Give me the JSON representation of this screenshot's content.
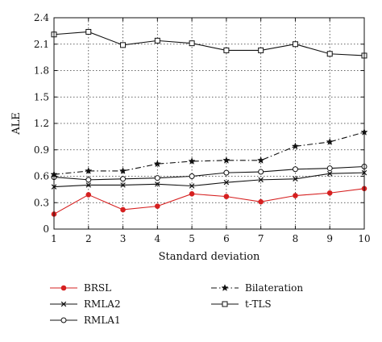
{
  "chart_data": {
    "type": "line",
    "title": "",
    "xlabel": "Standard deviation",
    "ylabel": "ALE",
    "xlim": [
      1,
      10
    ],
    "ylim": [
      0,
      2.4
    ],
    "xticks": [
      "1",
      "2",
      "3",
      "4",
      "5",
      "6",
      "7",
      "8",
      "9",
      "10"
    ],
    "yticks": [
      "0",
      "0.3",
      "0.6",
      "0.9",
      "1.2",
      "1.5",
      "1.8",
      "2.1",
      "2.4"
    ],
    "grid": true,
    "grid_style": "dotted",
    "legend_position": "below",
    "x": [
      1,
      2,
      3,
      4,
      5,
      6,
      7,
      8,
      9,
      10
    ],
    "series": [
      {
        "name": "BRSL",
        "values": [
          0.17,
          0.39,
          0.22,
          0.26,
          0.4,
          0.37,
          0.31,
          0.38,
          0.41,
          0.46
        ],
        "color": "#d62020",
        "marker": "filled-circle",
        "line": "solid"
      },
      {
        "name": "RMLA2",
        "values": [
          0.48,
          0.5,
          0.5,
          0.51,
          0.49,
          0.53,
          0.56,
          0.57,
          0.63,
          0.64
        ],
        "color": "#111111",
        "marker": "cross",
        "line": "solid"
      },
      {
        "name": "RMLA1",
        "values": [
          0.59,
          0.56,
          0.57,
          0.58,
          0.6,
          0.64,
          0.65,
          0.68,
          0.69,
          0.71
        ],
        "color": "#111111",
        "marker": "open-circle",
        "line": "solid"
      },
      {
        "name": "Bilateration",
        "values": [
          0.62,
          0.66,
          0.66,
          0.74,
          0.77,
          0.78,
          0.78,
          0.94,
          0.99,
          1.1
        ],
        "color": "#111111",
        "marker": "star",
        "line": "dashdot"
      },
      {
        "name": "t-TLS",
        "values": [
          2.21,
          2.24,
          2.09,
          2.14,
          2.11,
          2.03,
          2.03,
          2.1,
          1.99,
          1.97
        ],
        "color": "#111111",
        "marker": "open-square",
        "line": "solid"
      }
    ]
  }
}
